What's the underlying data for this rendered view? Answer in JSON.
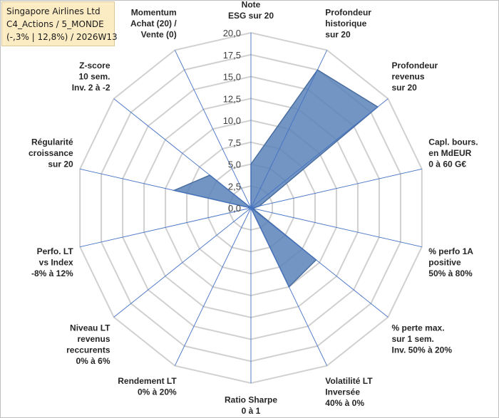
{
  "info_box": {
    "line1": "Singapore Airlines Ltd",
    "line2": "C4_Actions / 5_MONDE",
    "line3": "(-,3% | 12,8%) / 2026W13"
  },
  "chart_data": {
    "type": "radar",
    "title": "",
    "rmin": 0,
    "rmax": 20,
    "rings": 8,
    "grid": true,
    "tick_labels": [
      "0,0",
      "2,5",
      "5,0",
      "7,5",
      "10,0",
      "12,5",
      "15,0",
      "17,5",
      "20,0"
    ],
    "axes": [
      [
        "Note",
        "ESG sur 20"
      ],
      [
        "Profondeur",
        "historique",
        "sur 20"
      ],
      [
        "Profondeur",
        "revenus",
        "sur 20"
      ],
      [
        "Capl. bours.",
        "en MdEUR",
        "0 à 60 G€"
      ],
      [
        "% perfo 1A",
        "positive",
        "50% à 80%"
      ],
      [
        "% perte max.",
        "sur 1 sem.",
        "Inv. 50% à 20%"
      ],
      [
        "Volatilité LT",
        "Inversée",
        "40% à 0%"
      ],
      [
        "Ratio Sharpe",
        "0 à 1"
      ],
      [
        "Rendement LT",
        "0% à 20%"
      ],
      [
        "Niveau LT",
        "revenus",
        "reccurents",
        "0% à 6%"
      ],
      [
        "Perfo. LT",
        "vs Index",
        "-8% à 12%"
      ],
      [
        "Régularité",
        "croissance",
        "sur 20"
      ],
      [
        "Z-score",
        "10 sem.",
        "Inv. 2 à -2"
      ],
      [
        "Momentum",
        "Achat (20) /",
        "Vente (0)"
      ]
    ],
    "values": [
      5.0,
      17.5,
      18.5,
      1.0,
      0.2,
      9.5,
      10.0,
      0,
      0,
      0,
      0,
      9.0,
      6.0,
      0
    ],
    "series": [
      {
        "color": "#5b82b9",
        "stroke": "#4a6e9f"
      }
    ]
  }
}
